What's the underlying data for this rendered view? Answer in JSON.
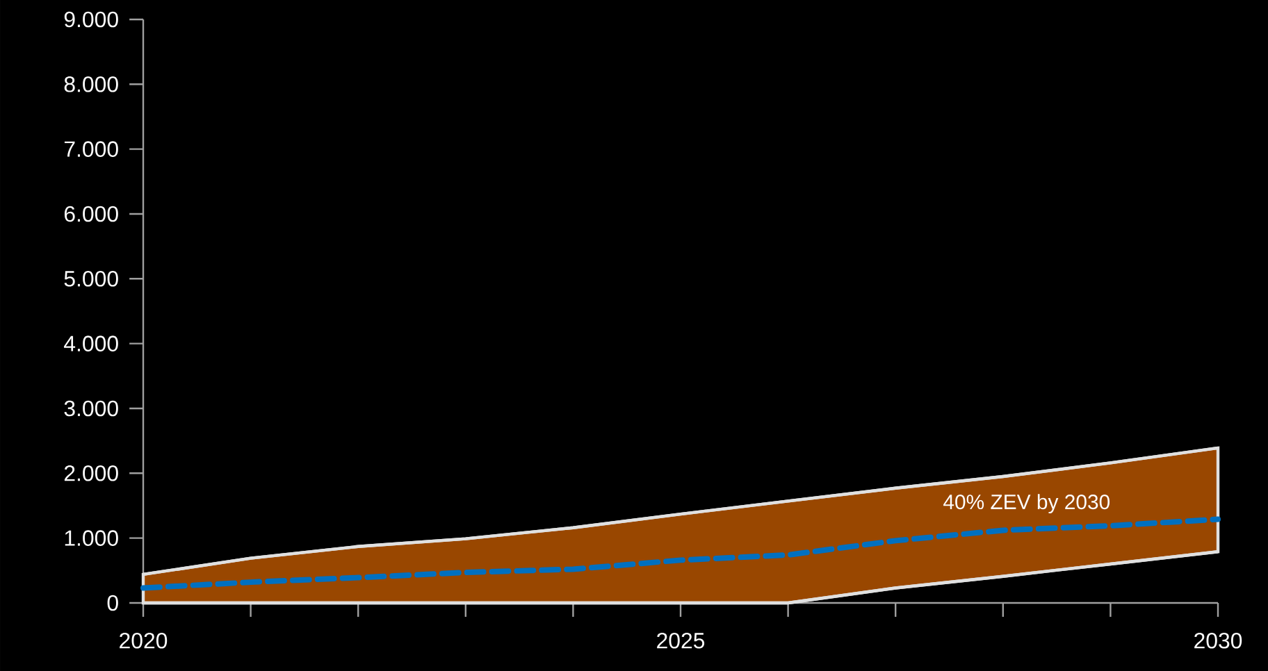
{
  "chart_data": {
    "type": "line",
    "x": [
      2020,
      2021,
      2022,
      2023,
      2024,
      2025,
      2026,
      2027,
      2028,
      2029,
      2030
    ],
    "series": [
      {
        "color": "#e0e0e0",
        "line_style": "solid",
        "values": [
          440,
          690,
          870,
          990,
          1160,
          1370,
          1570,
          1770,
          1950,
          2160,
          2390
        ]
      },
      {
        "color": "#e0e0e0",
        "line_style": "solid",
        "values": [
          0,
          0,
          0,
          0,
          0,
          0,
          0,
          230,
          410,
          600,
          790
        ]
      },
      {
        "color": "#0070c0",
        "line_style": "dashed",
        "values": [
          230,
          320,
          390,
          470,
          520,
          660,
          740,
          960,
          1120,
          1190,
          1290
        ],
        "lower": [
          0,
          0,
          0,
          0,
          0,
          0,
          0,
          230,
          410,
          600,
          790
        ],
        "upper": [
          440,
          690,
          870,
          990,
          1160,
          1370,
          1570,
          1770,
          1950,
          2160,
          2390
        ]
      }
    ],
    "xlim": [
      2020,
      2030
    ],
    "xticks": [
      2020,
      {
        "value": 2021,
        "label": null
      },
      {
        "value": 2022,
        "label": null
      },
      {
        "value": 2023,
        "label": null
      },
      {
        "value": 2024,
        "label": null
      },
      2025,
      {
        "value": 2026,
        "label": null
      },
      {
        "value": 2027,
        "label": null
      },
      {
        "value": 2028,
        "label": null
      },
      {
        "value": 2029,
        "label": null
      },
      2030
    ],
    "ylim": [
      0,
      9000
    ],
    "yticks": [
      {
        "value": 0,
        "label": "0"
      },
      {
        "value": 1000,
        "label": "1.000"
      },
      {
        "value": 2000,
        "label": "2.000"
      },
      {
        "value": 3000,
        "label": "3.000"
      },
      {
        "value": 4000,
        "label": "4.000"
      },
      {
        "value": 5000,
        "label": "5.000"
      },
      {
        "value": 6000,
        "label": "6.000"
      },
      {
        "value": 7000,
        "label": "7.000"
      },
      {
        "value": 8000,
        "label": "8.000"
      },
      {
        "value": 9000,
        "label": "9.000"
      }
    ],
    "annotations": [
      "40% ZEV by 2030"
    ]
  }
}
